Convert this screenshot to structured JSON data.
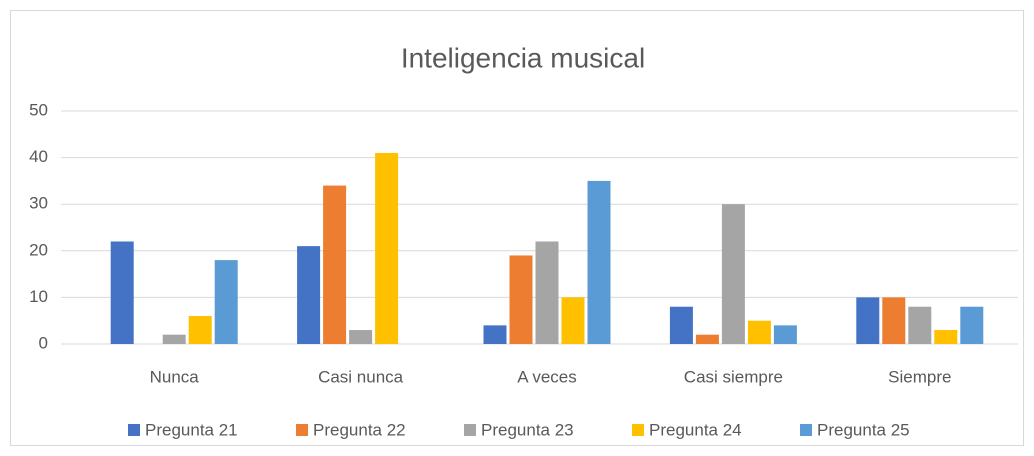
{
  "chart_data": {
    "type": "bar",
    "title": "Inteligencia musical",
    "categories": [
      "Nunca",
      "Casi nunca",
      "A veces",
      "Casi siempre",
      "Siempre"
    ],
    "series": [
      {
        "name": "Pregunta 21",
        "color": "#4472c4",
        "values": [
          22,
          21,
          4,
          8,
          10
        ]
      },
      {
        "name": "Pregunta 22",
        "color": "#ed7d31",
        "values": [
          0,
          34,
          19,
          2,
          10
        ]
      },
      {
        "name": "Pregunta 23",
        "color": "#a5a5a5",
        "values": [
          2,
          3,
          22,
          30,
          8
        ]
      },
      {
        "name": "Pregunta 24",
        "color": "#ffc000",
        "values": [
          6,
          41,
          10,
          5,
          3
        ]
      },
      {
        "name": "Pregunta 25",
        "color": "#5b9bd5",
        "values": [
          18,
          0,
          35,
          4,
          8
        ]
      }
    ],
    "ylim": [
      0,
      50
    ],
    "yticks": [
      0,
      10,
      20,
      30,
      40,
      50
    ],
    "grid": true,
    "legend": "bottom"
  }
}
